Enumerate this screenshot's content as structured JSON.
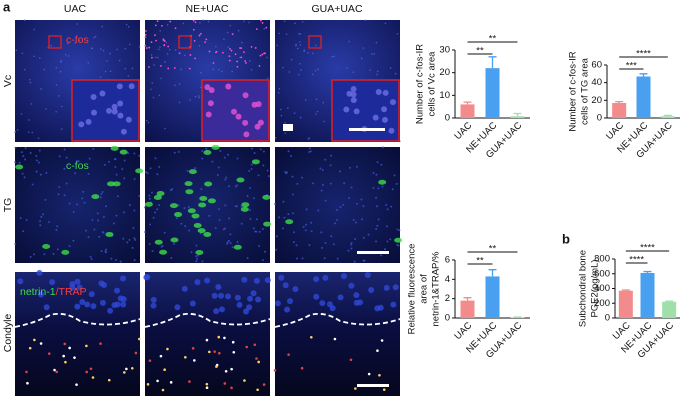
{
  "panel_labels": [
    "a",
    "b"
  ],
  "columns": [
    "UAC",
    "NE+UAC",
    "GUA+UAC"
  ],
  "rows": [
    "Vc",
    "TG",
    "Condyle"
  ],
  "image_labels": {
    "vc": "c-fos",
    "tg": "c-fos",
    "condyle": [
      "netrin-1",
      "/TRAP"
    ]
  },
  "chart_data": [
    {
      "type": "bar",
      "ylabel": [
        "Number of c-fos-IR",
        "cells of Vc area"
      ],
      "categories": [
        "UAC",
        "NE+UAC",
        "GUA+UAC"
      ],
      "values": [
        6,
        22,
        0.8
      ],
      "errors": [
        1,
        5,
        1.2
      ],
      "colors": [
        "#f28b8b",
        "#4aa0f0",
        "#9fe0aa"
      ],
      "ylim": [
        0,
        30
      ],
      "yticks": [
        0,
        10,
        20,
        30
      ],
      "significance": [
        "**",
        "**"
      ]
    },
    {
      "type": "bar",
      "ylabel": [
        "Number of c-fos-IR",
        "cells of TG area"
      ],
      "categories": [
        "UAC",
        "NE+UAC",
        "GUA+UAC"
      ],
      "values": [
        17,
        47,
        2
      ],
      "errors": [
        1.5,
        3,
        1
      ],
      "colors": [
        "#f28b8b",
        "#4aa0f0",
        "#9fe0aa"
      ],
      "ylim": [
        0,
        60
      ],
      "yticks": [
        0,
        20,
        40,
        60
      ],
      "significance": [
        "***",
        "****"
      ]
    },
    {
      "type": "bar",
      "ylabel": [
        "Relative fluorescence",
        "area of",
        "netrin-1&TRAP/%"
      ],
      "categories": [
        "UAC",
        "NE+UAC",
        "GUA+UAC"
      ],
      "values": [
        1.8,
        4.3,
        0.05
      ],
      "errors": [
        0.3,
        0.7,
        0.05
      ],
      "colors": [
        "#f28b8b",
        "#4aa0f0",
        "#9fe0aa"
      ],
      "ylim": [
        0,
        6
      ],
      "yticks": [
        0,
        2,
        4,
        6
      ],
      "significance": [
        "**",
        "**"
      ]
    },
    {
      "type": "bar",
      "ylabel": [
        "Subchondral bone",
        "PGE2(pg/mL)"
      ],
      "categories": [
        "UAC",
        "NE+UAC",
        "GUA+UAC"
      ],
      "values": [
        370,
        610,
        220
      ],
      "errors": [
        10,
        20,
        8
      ],
      "colors": [
        "#f28b8b",
        "#4aa0f0",
        "#9fe0aa"
      ],
      "ylim": [
        0,
        800
      ],
      "yticks": [
        0,
        200,
        400,
        600,
        800
      ],
      "significance": [
        "****",
        "****"
      ]
    }
  ]
}
